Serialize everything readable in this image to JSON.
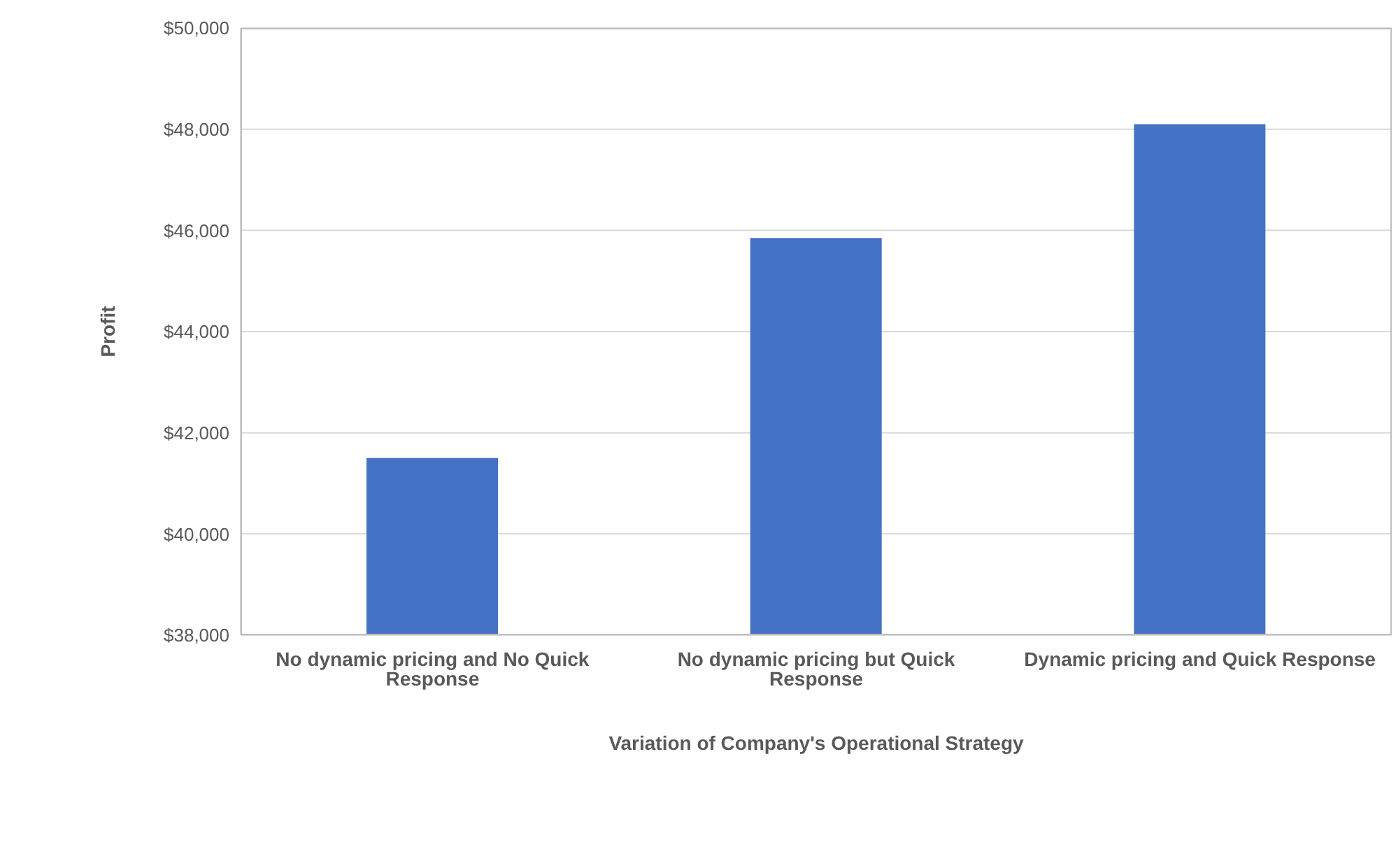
{
  "chart_data": {
    "type": "bar",
    "xlabel": "Variation of Company's Operational Strategy",
    "ylabel": "Profit",
    "categories": [
      "No dynamic pricing and No Quick Response",
      "No dynamic pricing but Quick Response",
      "Dynamic pricing and Quick Response"
    ],
    "values": [
      41500,
      45850,
      48100
    ],
    "color": "#4472c4",
    "ylim": [
      38000,
      50000
    ],
    "yticks": [
      {
        "value": 38000,
        "label": "$38,000"
      },
      {
        "value": 40000,
        "label": "$40,000"
      },
      {
        "value": 42000,
        "label": "$42,000"
      },
      {
        "value": 44000,
        "label": "$44,000"
      },
      {
        "value": 46000,
        "label": "$46,000"
      },
      {
        "value": 48000,
        "label": "$48,000"
      },
      {
        "value": 50000,
        "label": "$50,000"
      }
    ],
    "grid": "y",
    "legend": false
  }
}
